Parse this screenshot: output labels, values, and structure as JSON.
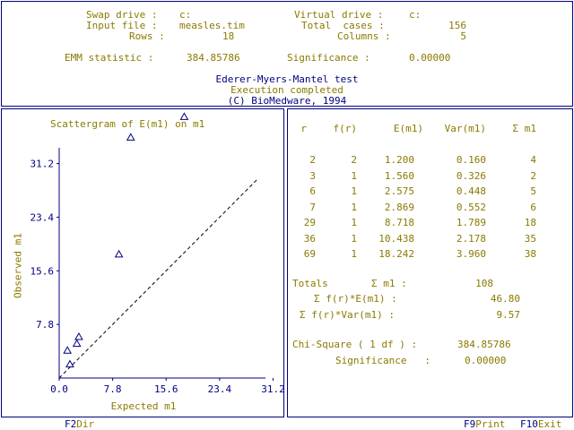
{
  "header": {
    "swap_label": "Swap drive :",
    "swap_value": "c:",
    "virtual_label": "Virtual drive :",
    "virtual_value": "c:",
    "input_label": "Input file :",
    "input_value": "measles.tim",
    "total_label": "Total  cases :",
    "total_value": "156",
    "rows_label": "Rows :",
    "rows_value": "18",
    "columns_label": "Columns :",
    "columns_value": "5",
    "emm_label": "EMM statistic :",
    "emm_value": "384.85786",
    "sig_label": "Significance :",
    "sig_value": "0.00000",
    "test_title": "Ederer-Myers-Mantel test",
    "status": "Execution completed",
    "copyright": "(C) BioMedware, 1994"
  },
  "chart_data": {
    "type": "scatter",
    "title": "Scattergram of E(m1) on m1",
    "xlabel": "Expected m1",
    "ylabel": "Observed m1",
    "xticks": [
      "0.0",
      "7.8",
      "15.6",
      "23.4",
      "31.2"
    ],
    "yticks": [
      "7.8",
      "15.6",
      "23.4",
      "31.2"
    ],
    "xlim": [
      0,
      35
    ],
    "ylim": [
      0,
      40
    ],
    "points": [
      {
        "x": 1.2,
        "y": 4
      },
      {
        "x": 1.56,
        "y": 2
      },
      {
        "x": 2.575,
        "y": 5
      },
      {
        "x": 2.869,
        "y": 6
      },
      {
        "x": 8.718,
        "y": 18
      },
      {
        "x": 10.438,
        "y": 35
      },
      {
        "x": 18.242,
        "y": 38
      }
    ],
    "reference_line": "y = x"
  },
  "table": {
    "headers": [
      "r",
      "f(r)",
      "E(m1)",
      "Var(m1)",
      "Σ m1"
    ],
    "rows": [
      [
        "2",
        "2",
        "1.200",
        "0.160",
        "4"
      ],
      [
        "3",
        "1",
        "1.560",
        "0.326",
        "2"
      ],
      [
        "6",
        "1",
        "2.575",
        "0.448",
        "5"
      ],
      [
        "7",
        "1",
        "2.869",
        "0.552",
        "6"
      ],
      [
        "29",
        "1",
        "8.718",
        "1.789",
        "18"
      ],
      [
        "36",
        "1",
        "10.438",
        "2.178",
        "35"
      ],
      [
        "69",
        "1",
        "18.242",
        "3.960",
        "38"
      ]
    ]
  },
  "totals": {
    "label": "Totals",
    "sum_label": "Σ m1 :",
    "sum_value": "108",
    "fe_label": "Σ f(r)*E(m1) :",
    "fe_value": "46.80",
    "fv_label": "Σ f(r)*Var(m1) :",
    "fv_value": "9.57",
    "chi_label": "Chi-Square ( 1 df ) :",
    "chi_value": "384.85786",
    "sig_label": "Significance   :",
    "sig_value": "0.00000"
  },
  "footer": {
    "f2_key": "F2",
    "f2_label": "Dir",
    "f9_key": "F9",
    "f9_label": "Print",
    "f10_key": "F10",
    "f10_label": "Exit"
  },
  "colors": {
    "text_primary": "#8a7a00",
    "text_secondary": "#000080",
    "border": "#000080"
  }
}
